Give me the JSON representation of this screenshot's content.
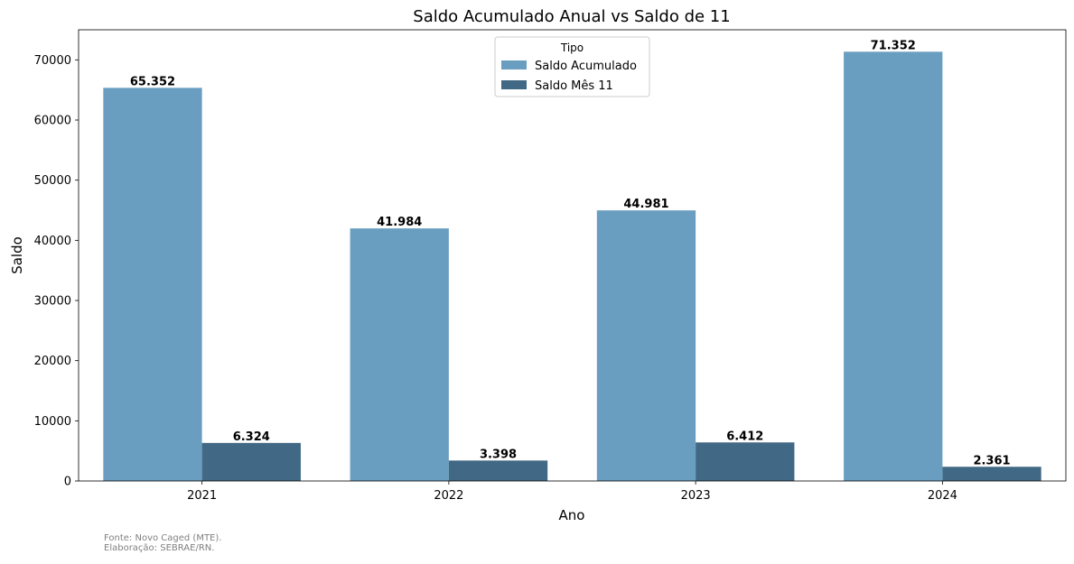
{
  "chart_data": {
    "type": "bar",
    "title": "Saldo Acumulado Anual vs Saldo de 11",
    "xlabel": "Ano",
    "ylabel": "Saldo",
    "categories": [
      "2021",
      "2022",
      "2023",
      "2024"
    ],
    "ylim": [
      0,
      75000
    ],
    "yticks": [
      0,
      10000,
      20000,
      30000,
      40000,
      50000,
      60000,
      70000
    ],
    "grid": false,
    "legend": {
      "title": "Tipo",
      "placement": "top-center"
    },
    "series": [
      {
        "name": "Saldo Acumulado",
        "color": "#6a9ec0",
        "values": [
          65352,
          41984,
          44981,
          71352
        ],
        "labels": [
          "65.352",
          "41.984",
          "44.981",
          "71.352"
        ]
      },
      {
        "name": "Saldo Mês 11",
        "color": "#416884",
        "values": [
          6324,
          3398,
          6412,
          2361
        ],
        "labels": [
          "6.324",
          "3.398",
          "6.412",
          "2.361"
        ]
      }
    ]
  },
  "footer": {
    "source": "Fonte: Novo Caged (MTE).",
    "credit": "Elaboração: SEBRAE/RN."
  }
}
